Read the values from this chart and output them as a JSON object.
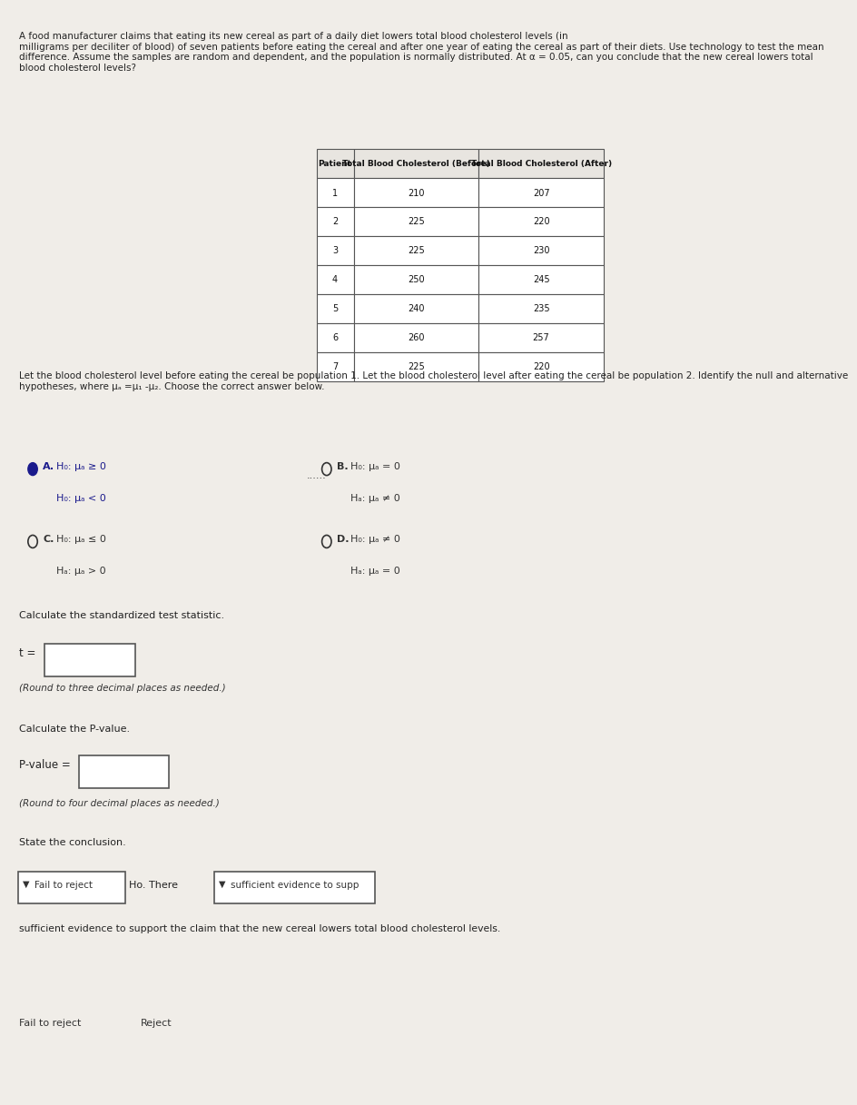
{
  "bg_color": "#f0ede8",
  "title_text": "A food manufacturer claims that eating its new cereal as part of a daily diet lowers total blood cholesterol levels (in\nmilligrams per deciliter of blood) of seven patients before eating the cereal and after one year of eating the cereal as part of their diets. Use technology to test the mean\ndifference. Assume the samples are random and dependent, and the population is normally distributed. At α = 0.05, can you conclude that the new cereal lowers total\nblood cholesterol levels?",
  "table_headers": [
    "Patient",
    "Total Blood Cholesterol (Before)",
    "Total Blood Cholesterol (After)"
  ],
  "patient_nums": [
    "1",
    "2",
    "3",
    "4",
    "5",
    "6",
    "7"
  ],
  "before_vals": [
    "210",
    "225",
    "225",
    "250",
    "240",
    "260",
    "225"
  ],
  "after_vals": [
    "207",
    "220",
    "230",
    "245",
    "235",
    "257",
    "220"
  ],
  "hypothesis_intro": "Let the blood cholesterol level before eating the cereal be population 1. Let the blood cholesterol level after eating the cereal be population 2. Identify the null and alternative\nhypotheses, where μₐ =μ₁ -μ₂. Choose the correct answer below.",
  "option_A_label": "A.",
  "option_A_H0": "H₀: μₐ ≥ 0",
  "option_A_HA": "H₀: μₐ < 0",
  "option_B_label": "B.",
  "option_B_H0": "H₀: μₐ = 0",
  "option_B_HA": "Hₐ: μₐ ≠ 0",
  "option_C_label": "C.",
  "option_C_H0": "H₀: μₐ ≤ 0",
  "option_C_HA": "Hₐ: μₐ > 0",
  "option_D_label": "D.",
  "option_D_H0": "H₀: μₐ ≠ 0",
  "option_D_HA": "Hₐ: μₐ = 0",
  "test_stat_label": "Calculate the standardized test statistic.",
  "t_label": "t =",
  "round_note1": "(Round to three decimal places as needed.)",
  "pvalue_label": "Calculate the P-value.",
  "pvalue_text": "P-value =",
  "round_note2": "(Round to four decimal places as needed.)",
  "conclusion_label": "State the conclusion.",
  "conclusion_text1": "Ho. There",
  "conclusion_text2": "sufficient evidence to support the claim that the new cereal lowers total blood cholesterol levels.",
  "fail_to_reject": "Fail to reject",
  "reject": "Reject"
}
